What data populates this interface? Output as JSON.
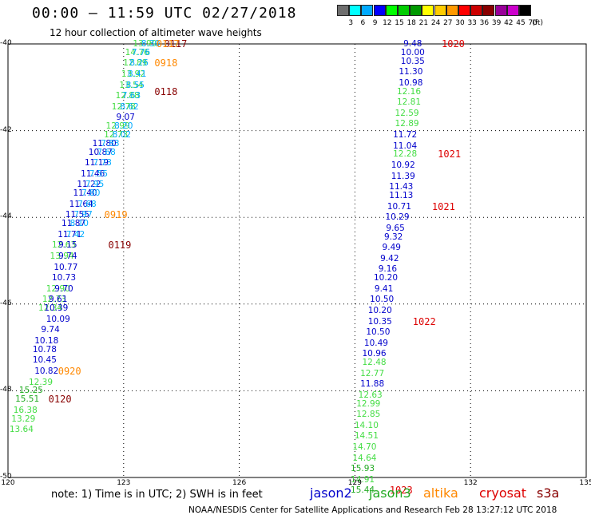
{
  "title": "00:00 — 11:59 UTC 02/27/2018",
  "subtitle": "12 hour collection of altimeter wave heights",
  "colorbar": {
    "unit": "(ft)",
    "colors": [
      "#6e6e6e",
      "#00ffff",
      "#00aaff",
      "#0000ff",
      "#00ff00",
      "#00cc00",
      "#009900",
      "#ffff00",
      "#ffcc00",
      "#ff9900",
      "#ff0000",
      "#cc0000",
      "#880000",
      "#990099",
      "#cc00cc",
      "#000000"
    ],
    "labels": [
      "3",
      "6",
      "9",
      "12",
      "15",
      "18",
      "21",
      "24",
      "27",
      "30",
      "33",
      "36",
      "39",
      "42",
      "45",
      "70"
    ]
  },
  "axes": {
    "lat_ticks": [
      "-40",
      "-42",
      "-44",
      "-46",
      "-48",
      "-50"
    ],
    "lon_ticks": [
      "120",
      "123",
      "126",
      "129",
      "132",
      "135"
    ]
  },
  "note": "note: 1) Time is in UTC; 2) SWH is in feet",
  "legend": {
    "jason2": {
      "label": "jason2",
      "color": "#0000cc"
    },
    "jason3": {
      "label": "jason3",
      "color": "#22aa22"
    },
    "altika": {
      "label": "altika",
      "color": "#ff8800"
    },
    "cryosat": {
      "label": "cryosat",
      "color": "#dd0000"
    },
    "s3a": {
      "label": "s3a",
      "color": "#880000"
    }
  },
  "footer": "NOAA/NESDIS Center for Satellite Applications and Research    Feb 28 13:27:12 UTC 2018",
  "map_data": {
    "lon_range": [
      120,
      135
    ],
    "lat_range": [
      -40,
      -50
    ],
    "right_track": [
      {
        "lat": -40.0,
        "lon": 130.5,
        "v": "9.48",
        "c": "#0000cc"
      },
      {
        "lat": -40.2,
        "lon": 130.5,
        "v": "10.00",
        "c": "#0000cc"
      },
      {
        "lat": -40.4,
        "lon": 130.5,
        "v": "10.35",
        "c": "#0000cc"
      },
      {
        "lat": -40.65,
        "lon": 130.45,
        "v": "11.30",
        "c": "#0000cc"
      },
      {
        "lat": -40.9,
        "lon": 130.45,
        "v": "10.98",
        "c": "#0000cc"
      },
      {
        "lat": -41.1,
        "lon": 130.4,
        "v": "12.16",
        "c": "#44dd44"
      },
      {
        "lat": -41.35,
        "lon": 130.4,
        "v": "12.81",
        "c": "#44dd44"
      },
      {
        "lat": -41.6,
        "lon": 130.35,
        "v": "12.59",
        "c": "#44dd44"
      },
      {
        "lat": -41.85,
        "lon": 130.35,
        "v": "12.89",
        "c": "#44dd44"
      },
      {
        "lat": -42.1,
        "lon": 130.3,
        "v": "11.72",
        "c": "#0000cc"
      },
      {
        "lat": -42.35,
        "lon": 130.3,
        "v": "11.04",
        "c": "#0000cc"
      },
      {
        "lat": -42.55,
        "lon": 130.3,
        "v": "12.28",
        "c": "#44dd44"
      },
      {
        "lat": -42.8,
        "lon": 130.25,
        "v": "10.92",
        "c": "#0000cc"
      },
      {
        "lat": -43.05,
        "lon": 130.25,
        "v": "11.39",
        "c": "#0000cc"
      },
      {
        "lat": -43.3,
        "lon": 130.2,
        "v": "11.43",
        "c": "#0000cc"
      },
      {
        "lat": -43.5,
        "lon": 130.2,
        "v": "11.13",
        "c": "#0000cc"
      },
      {
        "lat": -43.75,
        "lon": 130.15,
        "v": "10.71",
        "c": "#0000cc"
      },
      {
        "lat": -44.0,
        "lon": 130.1,
        "v": "10.29",
        "c": "#0000cc"
      },
      {
        "lat": -44.25,
        "lon": 130.05,
        "v": "9.65",
        "c": "#0000cc"
      },
      {
        "lat": -44.45,
        "lon": 130.0,
        "v": "9.32",
        "c": "#0000cc"
      },
      {
        "lat": -44.7,
        "lon": 129.95,
        "v": "9.49",
        "c": "#0000cc"
      },
      {
        "lat": -44.95,
        "lon": 129.9,
        "v": "9.42",
        "c": "#0000cc"
      },
      {
        "lat": -45.2,
        "lon": 129.85,
        "v": "9.16",
        "c": "#0000cc"
      },
      {
        "lat": -45.4,
        "lon": 129.8,
        "v": "10.20",
        "c": "#0000cc"
      },
      {
        "lat": -45.65,
        "lon": 129.75,
        "v": "9.41",
        "c": "#0000cc"
      },
      {
        "lat": -45.9,
        "lon": 129.7,
        "v": "10.50",
        "c": "#0000cc"
      },
      {
        "lat": -46.15,
        "lon": 129.65,
        "v": "10.20",
        "c": "#0000cc"
      },
      {
        "lat": -46.4,
        "lon": 129.65,
        "v": "10.35",
        "c": "#0000cc"
      },
      {
        "lat": -46.65,
        "lon": 129.6,
        "v": "10.50",
        "c": "#0000cc"
      },
      {
        "lat": -46.9,
        "lon": 129.55,
        "v": "10.49",
        "c": "#0000cc"
      },
      {
        "lat": -47.15,
        "lon": 129.5,
        "v": "10.96",
        "c": "#0000cc"
      },
      {
        "lat": -47.35,
        "lon": 129.5,
        "v": "12.48",
        "c": "#44dd44"
      },
      {
        "lat": -47.6,
        "lon": 129.45,
        "v": "12.77",
        "c": "#44dd44"
      },
      {
        "lat": -47.85,
        "lon": 129.45,
        "v": "11.88",
        "c": "#0000cc"
      },
      {
        "lat": -48.1,
        "lon": 129.4,
        "v": "12.63",
        "c": "#44dd44"
      },
      {
        "lat": -48.3,
        "lon": 129.35,
        "v": "12.99",
        "c": "#44dd44"
      },
      {
        "lat": -48.55,
        "lon": 129.35,
        "v": "12.85",
        "c": "#44dd44"
      },
      {
        "lat": -48.8,
        "lon": 129.3,
        "v": "14.10",
        "c": "#44dd44"
      },
      {
        "lat": -49.05,
        "lon": 129.3,
        "v": "14.51",
        "c": "#44dd44"
      },
      {
        "lat": -49.3,
        "lon": 129.25,
        "v": "14.70",
        "c": "#44dd44"
      },
      {
        "lat": -49.55,
        "lon": 129.25,
        "v": "14.64",
        "c": "#44dd44"
      },
      {
        "lat": -49.8,
        "lon": 129.2,
        "v": "15.93",
        "c": "#22aa22"
      },
      {
        "lat": -50.05,
        "lon": 129.2,
        "v": "14.91",
        "c": "#44dd44"
      },
      {
        "lat": -50.3,
        "lon": 129.2,
        "v": "15.44",
        "c": "#22aa22"
      }
    ],
    "left_track": [
      {
        "lat": -40.0,
        "lon": 123.55,
        "v": "13.99",
        "c": "#44dd44"
      },
      {
        "lat": -40.0,
        "lon": 123.7,
        "v": "8.30",
        "c": "#00aaff"
      },
      {
        "lat": -40.2,
        "lon": 123.35,
        "v": "14.76",
        "c": "#44dd44"
      },
      {
        "lat": -40.2,
        "lon": 123.45,
        "v": "7.76",
        "c": "#00aaff"
      },
      {
        "lat": -40.45,
        "lon": 123.3,
        "v": "12.89",
        "c": "#44dd44"
      },
      {
        "lat": -40.45,
        "lon": 123.4,
        "v": "8.26",
        "c": "#00aaff"
      },
      {
        "lat": -40.7,
        "lon": 123.25,
        "v": "13.92",
        "c": "#44dd44"
      },
      {
        "lat": -40.7,
        "lon": 123.35,
        "v": "8.41",
        "c": "#00aaff"
      },
      {
        "lat": -40.95,
        "lon": 123.2,
        "v": "13.54",
        "c": "#44dd44"
      },
      {
        "lat": -40.95,
        "lon": 123.3,
        "v": "8.55",
        "c": "#00aaff"
      },
      {
        "lat": -41.2,
        "lon": 123.1,
        "v": "12.88",
        "c": "#44dd44"
      },
      {
        "lat": -41.2,
        "lon": 123.2,
        "v": "7.63",
        "c": "#00aaff"
      },
      {
        "lat": -41.45,
        "lon": 123.0,
        "v": "12.78",
        "c": "#44dd44"
      },
      {
        "lat": -41.45,
        "lon": 123.15,
        "v": "8.62",
        "c": "#00aaff"
      },
      {
        "lat": -41.7,
        "lon": 123.05,
        "v": "9.07",
        "c": "#0000cc"
      },
      {
        "lat": -41.9,
        "lon": 122.85,
        "v": "12.99",
        "c": "#44dd44"
      },
      {
        "lat": -41.9,
        "lon": 123.0,
        "v": "8.20",
        "c": "#00aaff"
      },
      {
        "lat": -42.1,
        "lon": 122.8,
        "v": "12.73",
        "c": "#44dd44"
      },
      {
        "lat": -42.1,
        "lon": 122.95,
        "v": "8.02",
        "c": "#00aaff"
      },
      {
        "lat": -42.3,
        "lon": 122.5,
        "v": "11.80",
        "c": "#0000cc"
      },
      {
        "lat": -42.3,
        "lon": 122.65,
        "v": "7.83",
        "c": "#00aaff"
      },
      {
        "lat": -42.5,
        "lon": 122.4,
        "v": "10.87",
        "c": "#0000cc"
      },
      {
        "lat": -42.5,
        "lon": 122.55,
        "v": "7.68",
        "c": "#00aaff"
      },
      {
        "lat": -42.75,
        "lon": 122.3,
        "v": "11.19",
        "c": "#0000cc"
      },
      {
        "lat": -42.75,
        "lon": 122.45,
        "v": "7.73",
        "c": "#00aaff"
      },
      {
        "lat": -43.0,
        "lon": 122.2,
        "v": "11.46",
        "c": "#0000cc"
      },
      {
        "lat": -43.0,
        "lon": 122.35,
        "v": "7.55",
        "c": "#00aaff"
      },
      {
        "lat": -43.25,
        "lon": 122.1,
        "v": "11.22",
        "c": "#0000cc"
      },
      {
        "lat": -43.25,
        "lon": 122.25,
        "v": "7.95",
        "c": "#00aaff"
      },
      {
        "lat": -43.45,
        "lon": 122.0,
        "v": "11.40",
        "c": "#0000cc"
      },
      {
        "lat": -43.45,
        "lon": 122.15,
        "v": "7.80",
        "c": "#00aaff"
      },
      {
        "lat": -43.7,
        "lon": 121.9,
        "v": "11.64",
        "c": "#0000cc"
      },
      {
        "lat": -43.7,
        "lon": 122.05,
        "v": "7.68",
        "c": "#00aaff"
      },
      {
        "lat": -43.95,
        "lon": 121.8,
        "v": "11.55",
        "c": "#0000cc"
      },
      {
        "lat": -43.95,
        "lon": 121.95,
        "v": "7.97",
        "c": "#00aaff"
      },
      {
        "lat": -44.15,
        "lon": 121.7,
        "v": "11.87",
        "c": "#0000cc"
      },
      {
        "lat": -44.15,
        "lon": 121.85,
        "v": "8.10",
        "c": "#00aaff"
      },
      {
        "lat": -44.4,
        "lon": 121.6,
        "v": "11.71",
        "c": "#0000cc"
      },
      {
        "lat": -44.4,
        "lon": 121.75,
        "v": "7.42",
        "c": "#00aaff"
      },
      {
        "lat": -44.65,
        "lon": 121.45,
        "v": "12.63",
        "c": "#44dd44"
      },
      {
        "lat": -44.65,
        "lon": 121.55,
        "v": "9.15",
        "c": "#0000cc"
      },
      {
        "lat": -44.9,
        "lon": 121.4,
        "v": "13.94",
        "c": "#44dd44"
      },
      {
        "lat": -44.9,
        "lon": 121.55,
        "v": "9.74",
        "c": "#0000cc"
      },
      {
        "lat": -45.15,
        "lon": 121.5,
        "v": "10.77",
        "c": "#0000cc"
      },
      {
        "lat": -45.4,
        "lon": 121.45,
        "v": "10.73",
        "c": "#0000cc"
      },
      {
        "lat": -45.65,
        "lon": 121.3,
        "v": "12.90",
        "c": "#44dd44"
      },
      {
        "lat": -45.65,
        "lon": 121.45,
        "v": "9.70",
        "c": "#0000cc"
      },
      {
        "lat": -45.9,
        "lon": 121.2,
        "v": "12.73",
        "c": "#44dd44"
      },
      {
        "lat": -45.9,
        "lon": 121.3,
        "v": "9.61",
        "c": "#0000cc"
      },
      {
        "lat": -46.1,
        "lon": 121.1,
        "v": "12.34",
        "c": "#44dd44"
      },
      {
        "lat": -46.1,
        "lon": 121.25,
        "v": "10.39",
        "c": "#0000cc"
      },
      {
        "lat": -46.35,
        "lon": 121.3,
        "v": "10.09",
        "c": "#0000cc"
      },
      {
        "lat": -46.6,
        "lon": 121.1,
        "v": "9.74",
        "c": "#0000cc"
      },
      {
        "lat": -46.85,
        "lon": 121.0,
        "v": "10.18",
        "c": "#0000cc"
      },
      {
        "lat": -47.05,
        "lon": 120.95,
        "v": "10.78",
        "c": "#0000cc"
      },
      {
        "lat": -47.3,
        "lon": 120.95,
        "v": "10.45",
        "c": "#0000cc"
      },
      {
        "lat": -47.55,
        "lon": 121.0,
        "v": "10.82",
        "c": "#0000cc"
      },
      {
        "lat": -47.8,
        "lon": 120.85,
        "v": "12.39",
        "c": "#44dd44"
      },
      {
        "lat": -48.0,
        "lon": 120.6,
        "v": "15.25",
        "c": "#22aa22"
      },
      {
        "lat": -48.2,
        "lon": 120.5,
        "v": "15.51",
        "c": "#22aa22"
      },
      {
        "lat": -48.45,
        "lon": 120.45,
        "v": "16.38",
        "c": "#44dd44"
      },
      {
        "lat": -48.65,
        "lon": 120.4,
        "v": "13.29",
        "c": "#44dd44"
      },
      {
        "lat": -48.9,
        "lon": 120.35,
        "v": "13.64",
        "c": "#44dd44"
      }
    ],
    "time_labels": [
      {
        "lat": -40.0,
        "lon": 124.05,
        "t": "0117",
        "c": "#880000"
      },
      {
        "lat": -40.0,
        "lon": 123.85,
        "t": "0117",
        "c": "#ff8800"
      },
      {
        "lat": -40.45,
        "lon": 123.8,
        "t": "0918",
        "c": "#ff8800"
      },
      {
        "lat": -41.1,
        "lon": 123.8,
        "t": "0118",
        "c": "#880000"
      },
      {
        "lat": -43.95,
        "lon": 122.5,
        "t": "0919",
        "c": "#ff8800"
      },
      {
        "lat": -44.65,
        "lon": 122.6,
        "t": "0119",
        "c": "#880000"
      },
      {
        "lat": -47.55,
        "lon": 121.3,
        "t": "0920",
        "c": "#ff8800"
      },
      {
        "lat": -48.2,
        "lon": 121.05,
        "t": "0120",
        "c": "#880000"
      },
      {
        "lat": -40.0,
        "lon": 131.25,
        "t": "1020",
        "c": "#dd0000"
      },
      {
        "lat": -42.55,
        "lon": 131.15,
        "t": "1021",
        "c": "#dd0000"
      },
      {
        "lat": -43.75,
        "lon": 131.0,
        "t": "1021",
        "c": "#dd0000"
      },
      {
        "lat": -46.4,
        "lon": 130.5,
        "t": "1022",
        "c": "#dd0000"
      },
      {
        "lat": -50.3,
        "lon": 129.9,
        "t": "1023",
        "c": "#dd0000"
      }
    ]
  }
}
